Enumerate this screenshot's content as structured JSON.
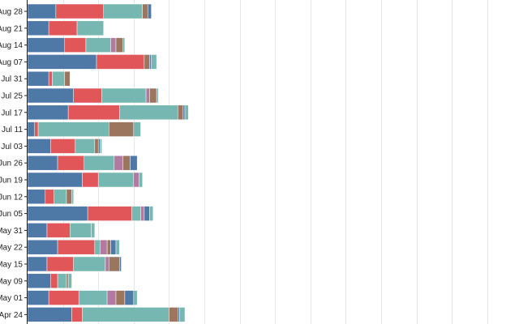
{
  "chart_data": {
    "type": "bar",
    "orientation": "horizontal",
    "stacked": true,
    "title": "",
    "xlabel": "",
    "ylabel": "",
    "xlim": [
      0,
      280
    ],
    "grid": true,
    "legend": "none",
    "categories": [
      "Aug 28",
      "Aug 21",
      "Aug 14",
      "Aug 07",
      "Jul 31",
      "Jul 25",
      "Jul 17",
      "Jul 11",
      "Jul 03",
      "Jun 26",
      "Jun 19",
      "Jun 12",
      "Jun 05",
      "May 31",
      "May 22",
      "May 15",
      "May 09",
      "May 01",
      "Apr 24"
    ],
    "series": [
      {
        "color": "#4e79a7",
        "values": [
          16,
          12,
          21,
          39,
          12,
          26,
          23,
          4,
          13,
          17,
          31,
          10,
          34,
          11,
          17,
          11,
          13,
          12,
          25
        ]
      },
      {
        "color": "#e15759",
        "values": [
          27,
          16,
          12,
          27,
          2,
          16,
          29,
          2,
          14,
          15,
          9,
          5,
          25,
          13,
          21,
          15,
          4,
          17,
          6
        ]
      },
      {
        "color": "#76b7b2",
        "values": [
          22,
          15,
          14,
          0,
          7,
          25,
          33,
          40,
          11,
          17,
          20,
          7,
          5,
          12,
          3,
          18,
          5,
          16,
          49
        ]
      },
      {
        "color": "#b07aa1",
        "values": [
          0,
          0,
          3,
          0,
          0,
          2,
          0,
          0,
          0,
          5,
          3,
          0,
          2,
          0,
          4,
          2,
          0,
          5,
          0
        ]
      },
      {
        "color": "#9c755f",
        "values": [
          3,
          0,
          4,
          3,
          3,
          4,
          3,
          14,
          2,
          4,
          0,
          3,
          0,
          0,
          2,
          6,
          1,
          5,
          5
        ]
      },
      {
        "color": "#4e79a7",
        "values": [
          2,
          0,
          0,
          1,
          0,
          0,
          1,
          0,
          1,
          4,
          0,
          0,
          3,
          0,
          3,
          1,
          0,
          5,
          1
        ]
      },
      {
        "color": "#76b7b2",
        "values": [
          0,
          0,
          1,
          3,
          0,
          1,
          2,
          4,
          1,
          0,
          2,
          1,
          2,
          2,
          2,
          0,
          2,
          2,
          3
        ]
      }
    ]
  }
}
